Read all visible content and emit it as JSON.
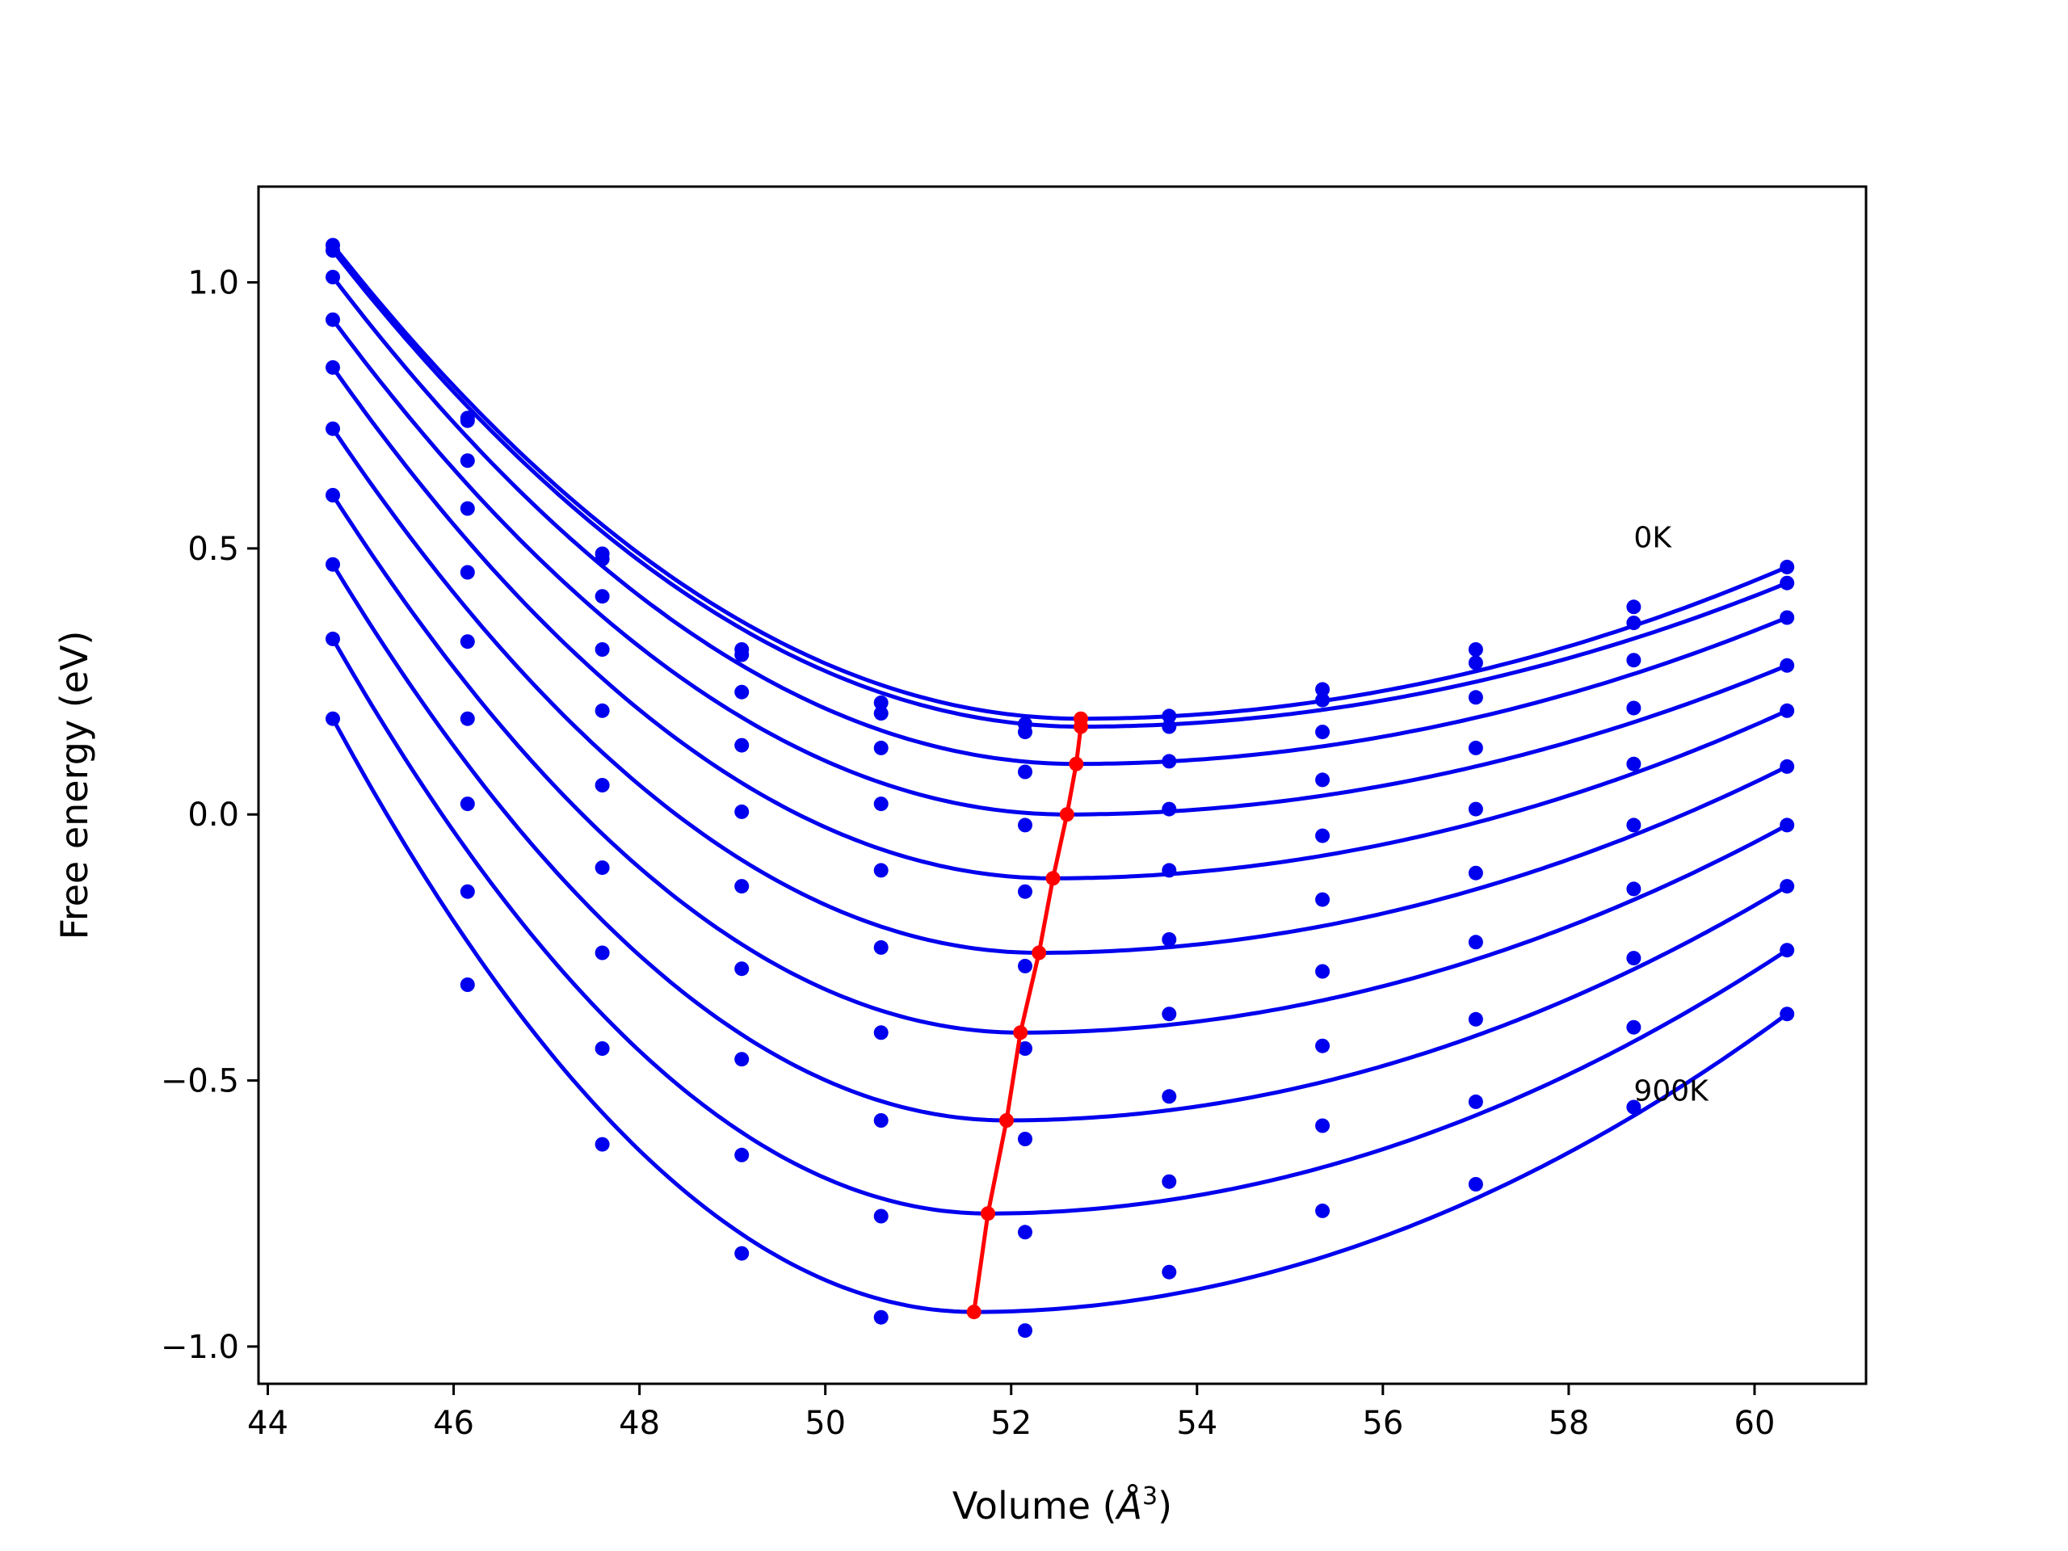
{
  "chart_data": {
    "type": "line",
    "title": "",
    "xlabel": "Volume (Å³)",
    "xlabel_base": "Volume (",
    "xlabel_unit": "Å",
    "xlabel_sup": "3",
    "xlabel_close": ")",
    "ylabel": "Free energy (eV)",
    "xlim": [
      43.9,
      61.2
    ],
    "ylim": [
      -1.07,
      1.18
    ],
    "xticks": [
      44,
      46,
      48,
      50,
      52,
      54,
      56,
      58,
      60
    ],
    "xtick_labels": [
      "44",
      "46",
      "48",
      "50",
      "52",
      "54",
      "56",
      "58",
      "60"
    ],
    "yticks": [
      -1.0,
      -0.5,
      0.0,
      0.5,
      1.0
    ],
    "ytick_labels": [
      "−1.0",
      "−0.5",
      "0.0",
      "0.5",
      "1.0"
    ],
    "grid": false,
    "legend": "none",
    "colors": {
      "curves": "#0000ee",
      "minima": "#ff0000"
    },
    "annotations": [
      {
        "text": "0K",
        "x": 58.7,
        "y": 0.52
      },
      {
        "text": "900K",
        "x": 58.7,
        "y": -0.52
      }
    ],
    "x": [
      44.7,
      46.15,
      47.6,
      49.1,
      50.6,
      52.15,
      53.7,
      55.35,
      57.0,
      58.7,
      60.35
    ],
    "series": [
      {
        "points": [
          1.07,
          0.745,
          0.49,
          0.31,
          0.21,
          0.17,
          0.185,
          0.235,
          0.31,
          0.39,
          0.465
        ],
        "min": [
          52.75,
          0.18
        ]
      },
      {
        "points": [
          1.06,
          0.74,
          0.48,
          0.3,
          0.19,
          0.155,
          0.165,
          0.215,
          0.285,
          0.36,
          0.435
        ],
        "min": [
          52.75,
          0.165
        ]
      },
      {
        "points": [
          1.01,
          0.665,
          0.41,
          0.23,
          0.125,
          0.08,
          0.1,
          0.155,
          0.22,
          0.29,
          0.37
        ],
        "min": [
          52.7,
          0.095
        ]
      },
      {
        "points": [
          0.93,
          0.575,
          0.31,
          0.13,
          0.02,
          -0.02,
          0.01,
          0.065,
          0.125,
          0.2,
          0.28
        ],
        "min": [
          52.6,
          0.0
        ]
      },
      {
        "points": [
          0.84,
          0.455,
          0.195,
          0.005,
          -0.105,
          -0.145,
          -0.105,
          -0.04,
          0.01,
          0.095,
          0.195
        ],
        "min": [
          52.45,
          -0.12
        ]
      },
      {
        "points": [
          0.725,
          0.325,
          0.055,
          -0.135,
          -0.25,
          -0.285,
          -0.235,
          -0.16,
          -0.11,
          -0.02,
          0.09
        ],
        "min": [
          52.3,
          -0.26
        ]
      },
      {
        "points": [
          0.6,
          0.18,
          -0.1,
          -0.29,
          -0.41,
          -0.44,
          -0.375,
          -0.295,
          -0.24,
          -0.14,
          -0.02
        ],
        "min": [
          52.1,
          -0.41
        ]
      },
      {
        "points": [
          0.47,
          0.02,
          -0.26,
          -0.46,
          -0.575,
          -0.61,
          -0.53,
          -0.435,
          -0.385,
          -0.27,
          -0.135
        ],
        "min": [
          51.95,
          -0.575
        ]
      },
      {
        "points": [
          0.33,
          -0.145,
          -0.44,
          -0.64,
          -0.755,
          -0.785,
          -0.69,
          -0.585,
          -0.54,
          -0.4,
          -0.255
        ],
        "min": [
          51.75,
          -0.75
        ]
      },
      {
        "points": [
          0.18,
          -0.32,
          -0.62,
          -0.825,
          -0.945,
          -0.97,
          -0.86,
          -0.745,
          -0.695,
          -0.55,
          -0.375
        ],
        "min": [
          51.6,
          -0.935
        ]
      }
    ]
  }
}
